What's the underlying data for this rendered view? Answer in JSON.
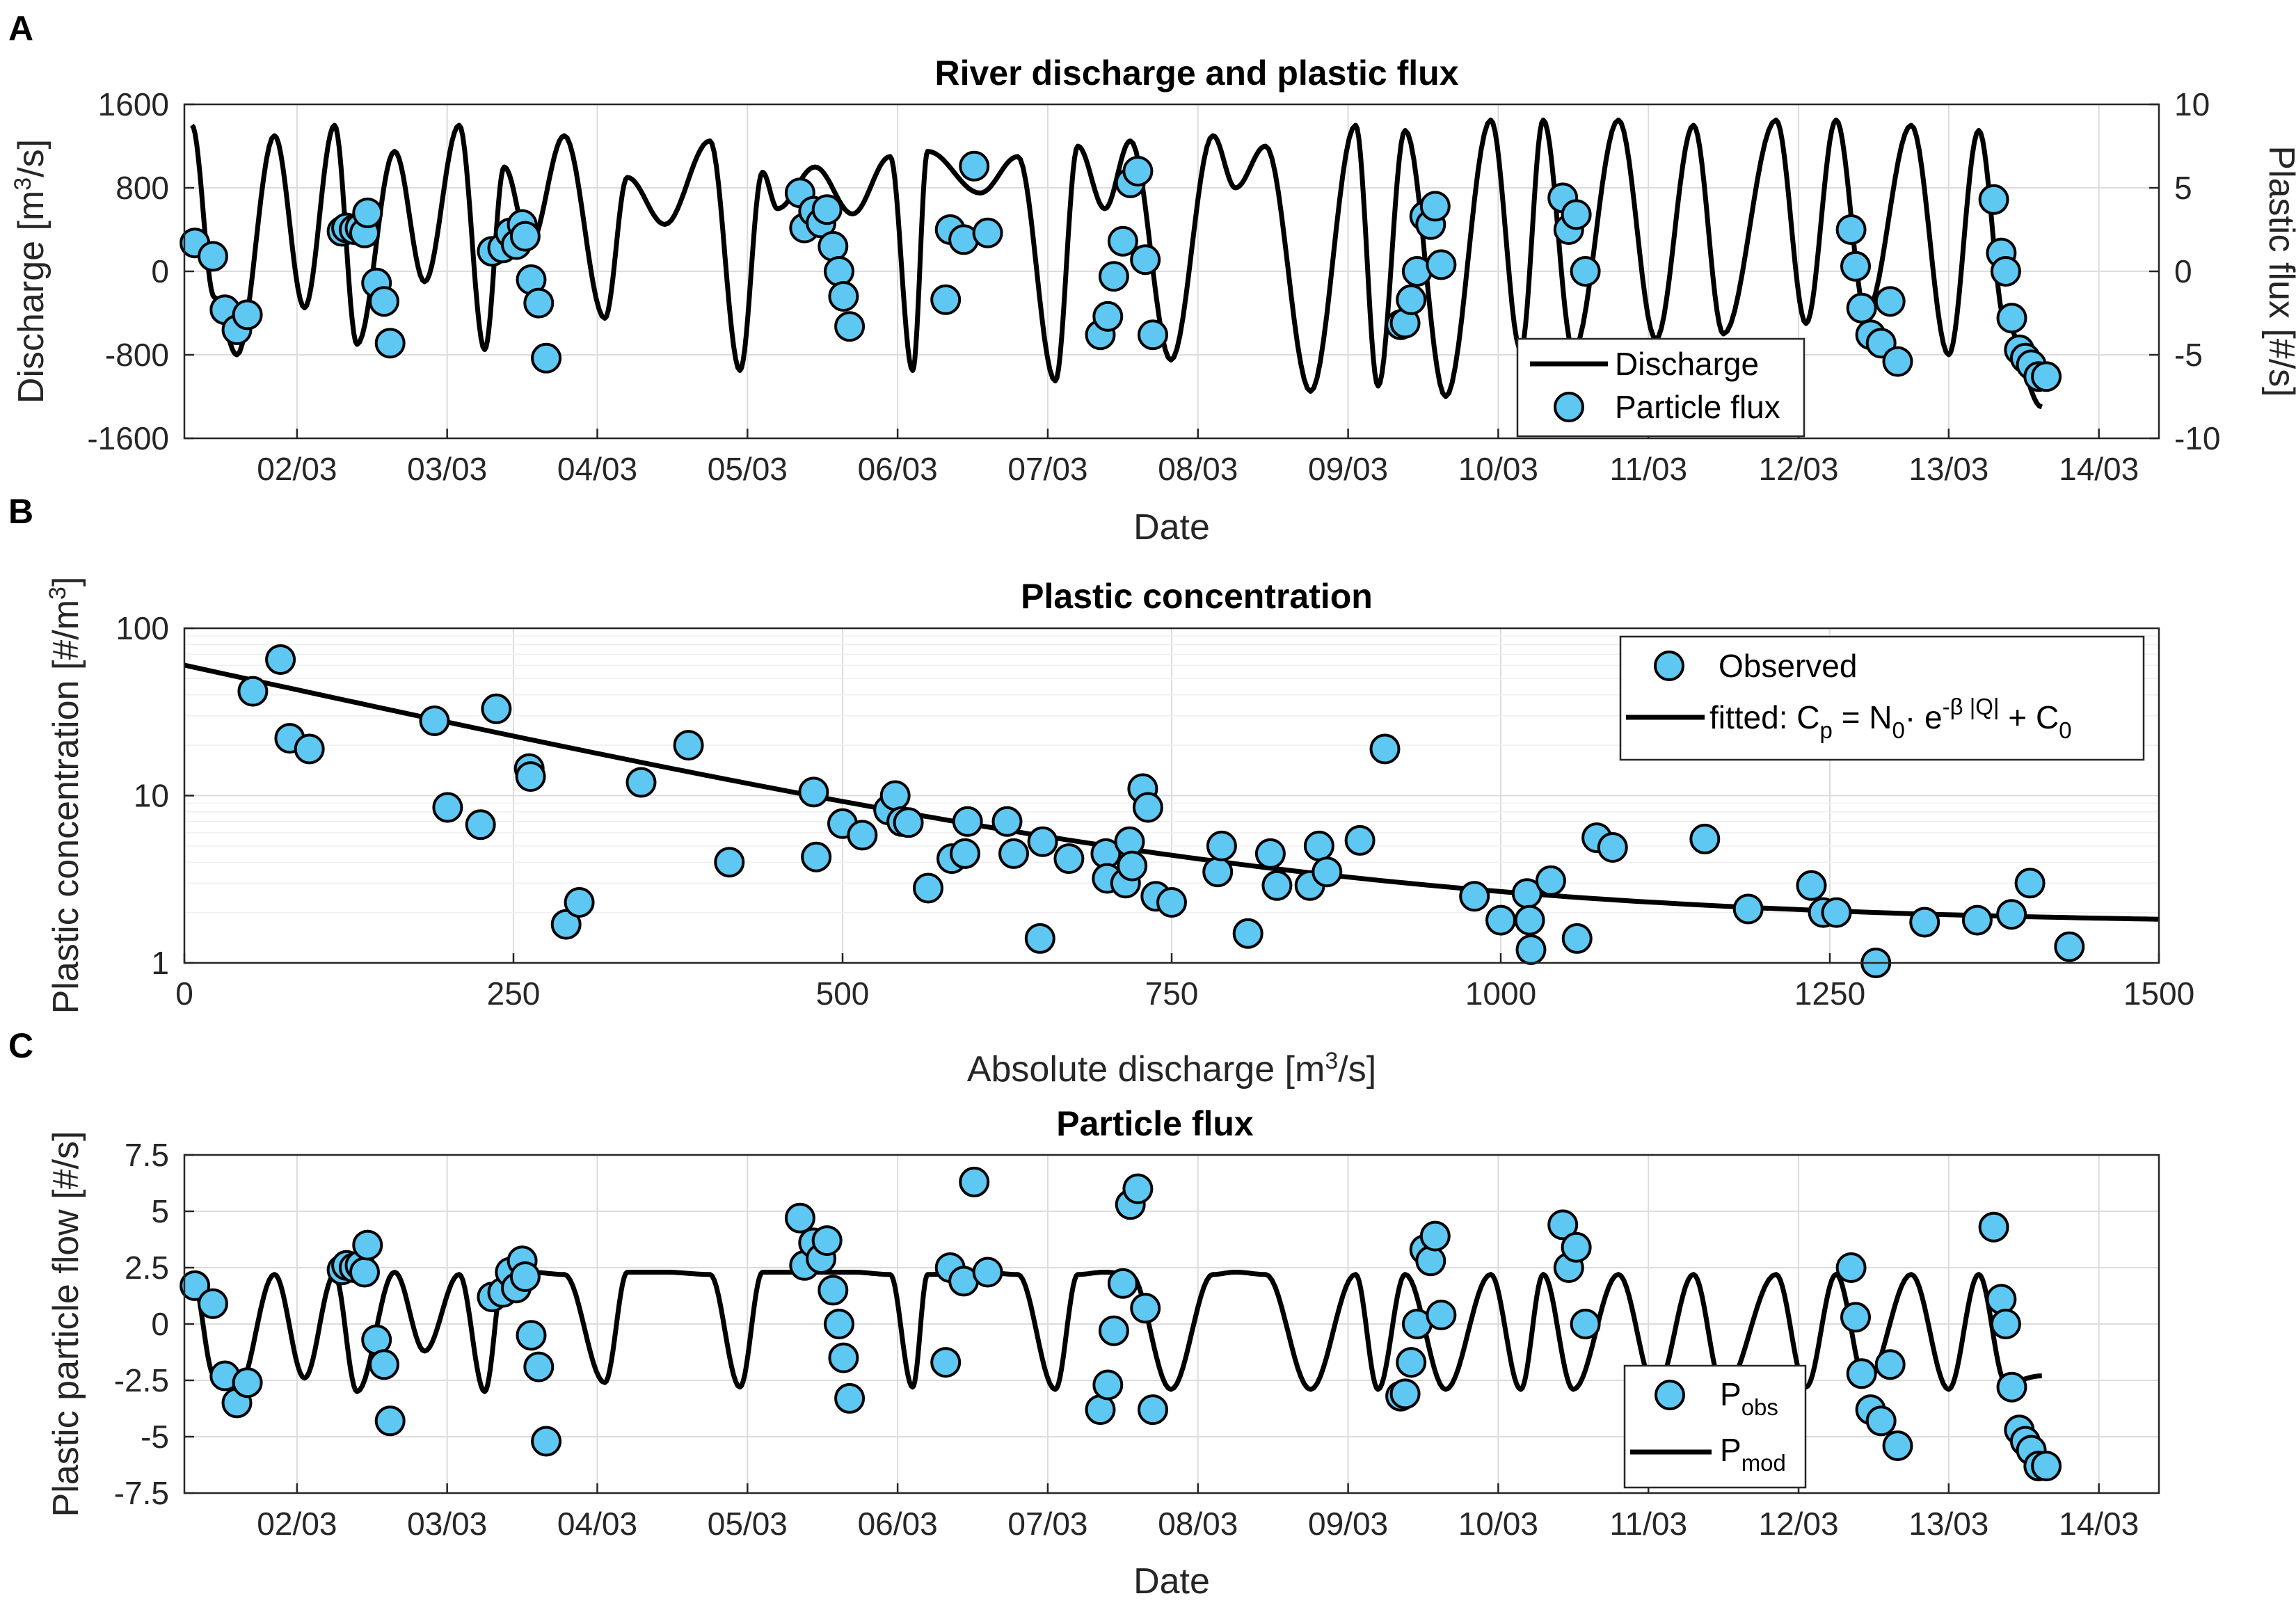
{
  "colors": {
    "marker_fill": "#5ec8f2",
    "marker_edge": "#000000",
    "line": "#000000",
    "grid": "#dcdcdc"
  },
  "chart_data": [
    {
      "panel": "A",
      "type": "line",
      "title": "River discharge and plastic flux",
      "xlabel": "Date",
      "ylabel": "Discharge [m³/s]",
      "ylabel_right": "Plastic flux [#/s]",
      "xlim": [
        1.25,
        14.4
      ],
      "ylim": [
        -1600,
        1600
      ],
      "ylim_right": [
        -10,
        10
      ],
      "x_ticks": [
        2,
        3,
        4,
        5,
        6,
        7,
        8,
        9,
        10,
        11,
        12,
        13,
        14
      ],
      "x_tick_labels": [
        "02/03",
        "03/03",
        "04/03",
        "05/03",
        "06/03",
        "07/03",
        "08/03",
        "09/03",
        "10/03",
        "11/03",
        "12/03",
        "13/03",
        "14/03"
      ],
      "y_ticks": [
        -1600,
        -800,
        0,
        800,
        1600
      ],
      "y_tick_labels": [
        "-1600",
        "-800",
        "0",
        "800",
        "1600"
      ],
      "y_ticks_right": [
        -10,
        -5,
        0,
        5,
        10
      ],
      "y_tick_labels_right": [
        "-10",
        "-5",
        "0",
        "5",
        "10"
      ],
      "legend": [
        "Discharge",
        "Particle flux"
      ],
      "legend_position": "bottom-right",
      "series": [
        {
          "name": "Discharge",
          "kind": "line",
          "axis": "left",
          "x": [
            1.3,
            1.45,
            1.6,
            1.85,
            2.05,
            2.25,
            2.4,
            2.65,
            2.85,
            3.08,
            3.25,
            3.38,
            3.55,
            3.78,
            4.05,
            4.2,
            4.45,
            4.75,
            4.95,
            5.1,
            5.2,
            5.45,
            5.7,
            5.95,
            6.1,
            6.2,
            6.55,
            6.8,
            7.05,
            7.2,
            7.38,
            7.55,
            7.82,
            8.1,
            8.25,
            8.45,
            8.75,
            9.05,
            9.2,
            9.38,
            9.65,
            9.95,
            10.15,
            10.3,
            10.5,
            10.8,
            11.05,
            11.3,
            11.5,
            11.85,
            12.05,
            12.25,
            12.45,
            12.75,
            13.0,
            13.2,
            13.38,
            13.62
          ],
          "y": [
            1400,
            -250,
            -800,
            1300,
            -350,
            1400,
            -700,
            1150,
            -100,
            1400,
            -750,
            1000,
            250,
            1300,
            -450,
            900,
            450,
            1250,
            -950,
            950,
            600,
            1000,
            550,
            1100,
            -950,
            1150,
            750,
            1100,
            -1050,
            1200,
            600,
            1250,
            -850,
            1300,
            800,
            1200,
            -1150,
            1400,
            -1100,
            1350,
            -1200,
            1450,
            -750,
            1450,
            -750,
            1450,
            -650,
            1400,
            -600,
            1450,
            -500,
            1450,
            -400,
            1400,
            -800,
            1350,
            -500,
            -1300
          ]
        },
        {
          "name": "Particle flux",
          "kind": "scatter",
          "axis": "right",
          "x": [
            1.32,
            1.44,
            1.52,
            1.6,
            1.67,
            2.3,
            2.33,
            2.38,
            2.42,
            2.45,
            2.47,
            2.53,
            2.58,
            2.62,
            3.3,
            3.37,
            3.42,
            3.46,
            3.5,
            3.52,
            3.56,
            3.61,
            3.66,
            5.35,
            5.38,
            5.44,
            5.49,
            5.53,
            5.57,
            5.61,
            5.64,
            5.68,
            6.32,
            6.35,
            6.44,
            6.51,
            6.6,
            7.35,
            7.4,
            7.44,
            7.5,
            7.55,
            7.6,
            7.65,
            7.7,
            9.35,
            9.38,
            9.42,
            9.46,
            9.51,
            9.55,
            9.58,
            9.62,
            10.43,
            10.47,
            10.52,
            10.58,
            12.35,
            12.38,
            12.42,
            12.48,
            12.55,
            12.61,
            12.66,
            13.3,
            13.35,
            13.38,
            13.42,
            13.47,
            13.51,
            13.55,
            13.6,
            13.65
          ],
          "y": [
            1.7,
            0.9,
            -2.3,
            -3.5,
            -2.6,
            2.4,
            2.6,
            2.5,
            2.6,
            2.3,
            3.5,
            -0.7,
            -1.8,
            -4.3,
            1.2,
            1.4,
            2.3,
            1.6,
            2.8,
            2.1,
            -0.5,
            -1.9,
            -5.2,
            4.7,
            2.6,
            3.6,
            2.9,
            3.7,
            1.5,
            0.0,
            -1.5,
            -3.3,
            -1.7,
            2.5,
            1.9,
            6.3,
            2.3,
            -3.8,
            -2.7,
            -0.3,
            1.8,
            5.3,
            6.0,
            0.7,
            -3.8,
            -3.2,
            -3.1,
            -1.7,
            0.0,
            3.3,
            2.8,
            3.9,
            0.4,
            4.4,
            2.5,
            3.4,
            0.0,
            2.5,
            0.3,
            -2.2,
            -3.8,
            -4.3,
            -1.8,
            -5.4,
            4.3,
            1.1,
            0.0,
            -2.8,
            -4.7,
            -5.2,
            -5.6,
            -6.3,
            -6.3
          ]
        }
      ]
    },
    {
      "panel": "B",
      "type": "scatter",
      "title": "Plastic concentration",
      "xlabel": "Absolute discharge [m³/s]",
      "ylabel": "Plastic concentration [#/m³]",
      "xlim": [
        0,
        1500
      ],
      "ylim": [
        1,
        100
      ],
      "yscale": "log",
      "x_ticks": [
        0,
        250,
        500,
        750,
        1000,
        1250,
        1500
      ],
      "x_tick_labels": [
        "0",
        "250",
        "500",
        "750",
        "1000",
        "1250",
        "1500"
      ],
      "y_ticks": [
        1,
        10,
        100
      ],
      "y_tick_labels": [
        "1",
        "10",
        "100"
      ],
      "legend": [
        "Observed",
        "fitted: Cₚ = N₀· e^{-β |Q|} + C₀"
      ],
      "legend_position": "top-right",
      "fit": {
        "N0": 58.5,
        "beta": 0.0041,
        "C0": 1.7
      },
      "series": [
        {
          "name": "Observed",
          "kind": "scatter",
          "x": [
            52,
            73,
            80,
            95,
            190,
            200,
            225,
            237,
            262,
            263,
            290,
            300,
            347,
            383,
            414,
            478,
            480,
            500,
            515,
            535,
            540,
            545,
            550,
            565,
            583,
            593,
            595,
            625,
            630,
            650,
            652,
            672,
            700,
            701,
            715,
            718,
            720,
            728,
            732,
            738,
            750,
            785,
            788,
            808,
            825,
            830,
            855,
            862,
            868,
            893,
            912,
            980,
            1000,
            1020,
            1022,
            1023,
            1038,
            1058,
            1073,
            1085,
            1155,
            1188,
            1236,
            1245,
            1255,
            1285,
            1322,
            1362,
            1388,
            1402,
            1432
          ],
          "y": [
            42,
            65,
            22,
            19,
            28,
            8.5,
            6.7,
            33,
            14.5,
            13,
            1.7,
            2.3,
            12,
            20,
            4.0,
            10.5,
            4.3,
            6.8,
            5.8,
            8.2,
            10,
            7.0,
            6.9,
            2.8,
            4.2,
            4.5,
            7.0,
            7.0,
            4.5,
            1.4,
            5.3,
            4.2,
            4.5,
            3.2,
            3.0,
            5.3,
            3.8,
            11,
            8.5,
            2.5,
            2.3,
            3.5,
            5.0,
            1.5,
            4.5,
            2.9,
            2.9,
            5.0,
            3.5,
            5.4,
            19,
            2.5,
            1.8,
            2.6,
            1.8,
            1.2,
            3.1,
            1.4,
            5.6,
            4.9,
            5.5,
            2.1,
            2.9,
            2.0,
            2.0,
            1.0,
            1.75,
            1.8,
            1.95,
            3.0,
            1.25
          ]
        }
      ]
    },
    {
      "panel": "C",
      "type": "line",
      "title": "Particle flux",
      "xlabel": "Date",
      "ylabel": "Plastic particle flow [#/s]",
      "xlim": [
        1.25,
        14.4
      ],
      "ylim": [
        -7.5,
        7.5
      ],
      "x_ticks": [
        2,
        3,
        4,
        5,
        6,
        7,
        8,
        9,
        10,
        11,
        12,
        13,
        14
      ],
      "x_tick_labels": [
        "02/03",
        "03/03",
        "04/03",
        "05/03",
        "06/03",
        "07/03",
        "08/03",
        "09/03",
        "10/03",
        "11/03",
        "12/03",
        "13/03",
        "14/03"
      ],
      "y_ticks": [
        -7.5,
        -5,
        -2.5,
        0,
        2.5,
        5,
        7.5
      ],
      "y_tick_labels": [
        "-7.5",
        "-5",
        "-2.5",
        "0",
        "2.5",
        "5",
        "7.5"
      ],
      "legend": [
        "P_obs",
        "P_mod"
      ],
      "legend_position": "bottom-right",
      "series": [
        {
          "name": "P_mod",
          "kind": "line",
          "x": [
            1.3,
            1.45,
            1.6,
            1.85,
            2.05,
            2.25,
            2.4,
            2.65,
            2.85,
            3.08,
            3.25,
            3.38,
            3.55,
            3.78,
            4.05,
            4.2,
            4.45,
            4.75,
            4.95,
            5.1,
            5.2,
            5.45,
            5.7,
            5.95,
            6.1,
            6.2,
            6.55,
            6.8,
            7.05,
            7.2,
            7.38,
            7.55,
            7.82,
            8.1,
            8.25,
            8.45,
            8.75,
            9.05,
            9.2,
            9.38,
            9.65,
            9.95,
            10.15,
            10.3,
            10.5,
            10.8,
            11.05,
            11.3,
            11.5,
            11.85,
            12.05,
            12.25,
            12.45,
            12.75,
            13.0,
            13.2,
            13.38,
            13.62
          ],
          "y": [
            2.2,
            -2.3,
            -3.0,
            2.2,
            -2.4,
            2.2,
            -3.0,
            2.3,
            -1.2,
            2.2,
            -3.0,
            2.3,
            2.3,
            2.2,
            -2.6,
            2.3,
            2.3,
            2.2,
            -2.8,
            2.3,
            2.3,
            2.3,
            2.3,
            2.2,
            -2.8,
            2.2,
            2.3,
            2.2,
            -2.9,
            2.2,
            2.3,
            2.2,
            -2.9,
            2.2,
            2.3,
            2.2,
            -2.9,
            2.2,
            -2.9,
            2.2,
            -2.9,
            2.2,
            -2.9,
            2.2,
            -2.9,
            2.2,
            -2.9,
            2.2,
            -2.9,
            2.2,
            -2.8,
            2.2,
            -2.6,
            2.2,
            -2.9,
            2.2,
            -2.6,
            -2.3
          ]
        },
        {
          "name": "P_obs",
          "kind": "scatter",
          "x": [
            1.32,
            1.44,
            1.52,
            1.6,
            1.67,
            2.3,
            2.33,
            2.38,
            2.42,
            2.45,
            2.47,
            2.53,
            2.58,
            2.62,
            3.3,
            3.37,
            3.42,
            3.46,
            3.5,
            3.52,
            3.56,
            3.61,
            3.66,
            5.35,
            5.38,
            5.44,
            5.49,
            5.53,
            5.57,
            5.61,
            5.64,
            5.68,
            6.32,
            6.35,
            6.44,
            6.51,
            6.6,
            7.35,
            7.4,
            7.44,
            7.5,
            7.55,
            7.6,
            7.65,
            7.7,
            9.35,
            9.38,
            9.42,
            9.46,
            9.51,
            9.55,
            9.58,
            9.62,
            10.43,
            10.47,
            10.52,
            10.58,
            12.35,
            12.38,
            12.42,
            12.48,
            12.55,
            12.61,
            12.66,
            13.3,
            13.35,
            13.38,
            13.42,
            13.47,
            13.51,
            13.55,
            13.6,
            13.65
          ],
          "y": [
            1.7,
            0.9,
            -2.3,
            -3.5,
            -2.6,
            2.4,
            2.6,
            2.5,
            2.6,
            2.3,
            3.5,
            -0.7,
            -1.8,
            -4.3,
            1.2,
            1.4,
            2.3,
            1.6,
            2.8,
            2.1,
            -0.5,
            -1.9,
            -5.2,
            4.7,
            2.6,
            3.6,
            2.9,
            3.7,
            1.5,
            0.0,
            -1.5,
            -3.3,
            -1.7,
            2.5,
            1.9,
            6.3,
            2.3,
            -3.8,
            -2.7,
            -0.3,
            1.8,
            5.3,
            6.0,
            0.7,
            -3.8,
            -3.2,
            -3.1,
            -1.7,
            0.0,
            3.3,
            2.8,
            3.9,
            0.4,
            4.4,
            2.5,
            3.4,
            0.0,
            2.5,
            0.3,
            -2.2,
            -3.8,
            -4.3,
            -1.8,
            -5.4,
            4.3,
            1.1,
            0.0,
            -2.8,
            -4.7,
            -5.2,
            -5.6,
            -6.3,
            -6.3
          ]
        }
      ]
    }
  ],
  "labels": {
    "panelA": "A",
    "panelB": "B",
    "panelC": "C",
    "a_title": "River discharge and plastic flux",
    "a_ylabel": "Discharge [m³/s]",
    "a_ylabel_right": "Plastic flux [#/s]",
    "a_xlabel": "Date",
    "a_legend_line": "Discharge",
    "a_legend_dot": "Particle flux",
    "b_title": "Plastic concentration",
    "b_ylabel": "Plastic concentration [#/m³]",
    "b_xlabel": "Absolute discharge [m³/s]",
    "b_legend_dot": "Observed",
    "b_legend_fit": "fitted: Cₚ = N₀· e^{-β |Q|} + C₀",
    "c_title": "Particle flux",
    "c_ylabel": "Plastic particle flow [#/s]",
    "c_xlabel": "Date",
    "c_legend_obs": "P_obs",
    "c_legend_mod": "P_mod"
  }
}
